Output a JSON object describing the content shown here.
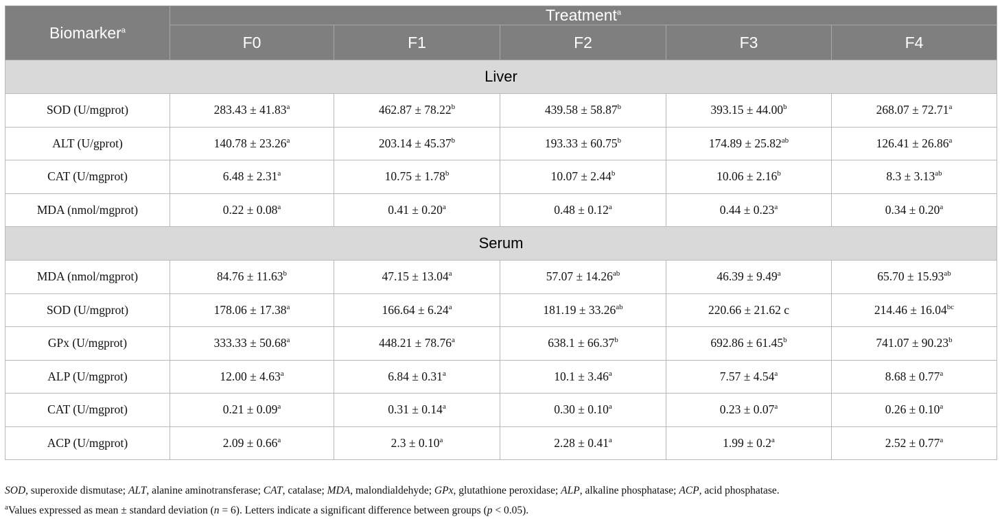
{
  "table": {
    "header": {
      "biomarker": {
        "text": "Biomarker",
        "sup": "a"
      },
      "treatment": {
        "text": "Treatment",
        "sup": "a"
      },
      "columns": [
        "F0",
        "F1",
        "F2",
        "F3",
        "F4"
      ]
    },
    "sections": [
      {
        "title": "Liver",
        "rows": [
          {
            "label": "SOD (U/mgprot)",
            "cells": [
              {
                "text": "283.43 ± 41.83",
                "sup": "a"
              },
              {
                "text": "462.87 ± 78.22",
                "sup": "b"
              },
              {
                "text": "439.58 ± 58.87",
                "sup": "b"
              },
              {
                "text": "393.15 ± 44.00",
                "sup": "b"
              },
              {
                "text": "268.07 ± 72.71",
                "sup": "a"
              }
            ]
          },
          {
            "label": "ALT (U/gprot)",
            "cells": [
              {
                "text": "140.78 ± 23.26",
                "sup": "a"
              },
              {
                "text": "203.14 ± 45.37",
                "sup": "b"
              },
              {
                "text": "193.33 ± 60.75",
                "sup": "b"
              },
              {
                "text": "174.89 ± 25.82",
                "sup": "ab"
              },
              {
                "text": "126.41 ± 26.86",
                "sup": "a"
              }
            ]
          },
          {
            "label": "CAT (U/mgprot)",
            "cells": [
              {
                "text": "6.48 ± 2.31",
                "sup": "a"
              },
              {
                "text": "10.75 ± 1.78",
                "sup": "b"
              },
              {
                "text": "10.07 ± 2.44",
                "sup": "b"
              },
              {
                "text": "10.06 ± 2.16",
                "sup": "b"
              },
              {
                "text": "8.3 ± 3.13",
                "sup": "ab"
              }
            ]
          },
          {
            "label": "MDA (nmol/mgprot)",
            "cells": [
              {
                "text": "0.22 ± 0.08",
                "sup": "a"
              },
              {
                "text": "0.41 ± 0.20",
                "sup": "a"
              },
              {
                "text": "0.48 ± 0.12",
                "sup": "a"
              },
              {
                "text": "0.44 ± 0.23",
                "sup": "a"
              },
              {
                "text": "0.34 ± 0.20",
                "sup": "a"
              }
            ]
          }
        ]
      },
      {
        "title": "Serum",
        "rows": [
          {
            "label": "MDA (nmol/mgprot)",
            "cells": [
              {
                "text": "84.76 ± 11.63",
                "sup": "b"
              },
              {
                "text": "47.15 ± 13.04",
                "sup": "a"
              },
              {
                "text": "57.07 ± 14.26",
                "sup": "ab"
              },
              {
                "text": "46.39 ± 9.49",
                "sup": "a"
              },
              {
                "text": "65.70 ± 15.93",
                "sup": "ab"
              }
            ]
          },
          {
            "label": "SOD (U/mgprot)",
            "cells": [
              {
                "text": "178.06 ± 17.38",
                "sup": "a"
              },
              {
                "text": "166.64 ± 6.24",
                "sup": "a"
              },
              {
                "text": "181.19 ± 33.26",
                "sup": "ab"
              },
              {
                "text": "220.66 ± 21.62 c"
              },
              {
                "text": "214.46 ± 16.04",
                "sup": "bc"
              }
            ]
          },
          {
            "label": "GPx (U/mgprot)",
            "cells": [
              {
                "text": "333.33 ± 50.68",
                "sup": "a"
              },
              {
                "text": "448.21 ± 78.76",
                "sup": "a"
              },
              {
                "text": "638.1 ± 66.37",
                "sup": "b"
              },
              {
                "text": "692.86 ± 61.45",
                "sup": "b"
              },
              {
                "text": "741.07 ± 90.23",
                "sup": "b"
              }
            ]
          },
          {
            "label": "ALP (U/mgprot)",
            "cells": [
              {
                "text": "12.00 ± 4.63",
                "sup": "a"
              },
              {
                "text": "6.84 ± 0.31",
                "sup": "a"
              },
              {
                "text": "10.1 ± 3.46",
                "sup": "a"
              },
              {
                "text": "7.57 ± 4.54",
                "sup": "a"
              },
              {
                "text": "8.68 ± 0.77",
                "sup": "a"
              }
            ]
          },
          {
            "label": "CAT (U/mgprot)",
            "cells": [
              {
                "text": "0.21 ± 0.09",
                "sup": "a"
              },
              {
                "text": "0.31 ± 0.14",
                "sup": "a"
              },
              {
                "text": "0.30 ± 0.10",
                "sup": "a"
              },
              {
                "text": "0.23 ± 0.07",
                "sup": "a"
              },
              {
                "text": "0.26 ± 0.10",
                "sup": "a"
              }
            ]
          },
          {
            "label": "ACP (U/mgprot)",
            "cells": [
              {
                "text": "2.09 ± 0.66",
                "sup": "a"
              },
              {
                "text": "2.3 ± 0.10",
                "sup": "a"
              },
              {
                "text": "2.28 ± 0.41",
                "sup": "a"
              },
              {
                "text": "1.99 ± 0.2",
                "sup": "a"
              },
              {
                "text": "2.52 ± 0.77",
                "sup": "a"
              }
            ]
          }
        ]
      }
    ]
  },
  "footnotes": [
    [
      {
        "text": "SOD",
        "style": "italic"
      },
      {
        "text": ", superoxide dismutase; "
      },
      {
        "text": "ALT",
        "style": "italic"
      },
      {
        "text": ", alanine aminotransferase; "
      },
      {
        "text": "CAT",
        "style": "italic"
      },
      {
        "text": ", catalase; "
      },
      {
        "text": "MDA",
        "style": "italic"
      },
      {
        "text": ", malondialdehyde; "
      },
      {
        "text": "GPx",
        "style": "italic"
      },
      {
        "text": ", glutathione peroxidase; "
      },
      {
        "text": "ALP",
        "style": "italic"
      },
      {
        "text": ", alkaline phosphatase; "
      },
      {
        "text": "ACP",
        "style": "italic"
      },
      {
        "text": ", acid phosphatase."
      }
    ],
    [
      {
        "text": "a",
        "style": "sup"
      },
      {
        "text": "Values expressed as mean ± standard deviation ("
      },
      {
        "text": "n",
        "style": "italic"
      },
      {
        "text": " = 6). Letters indicate a significant difference between groups ("
      },
      {
        "text": "p",
        "style": "italic"
      },
      {
        "text": " < 0.05)."
      }
    ]
  ]
}
